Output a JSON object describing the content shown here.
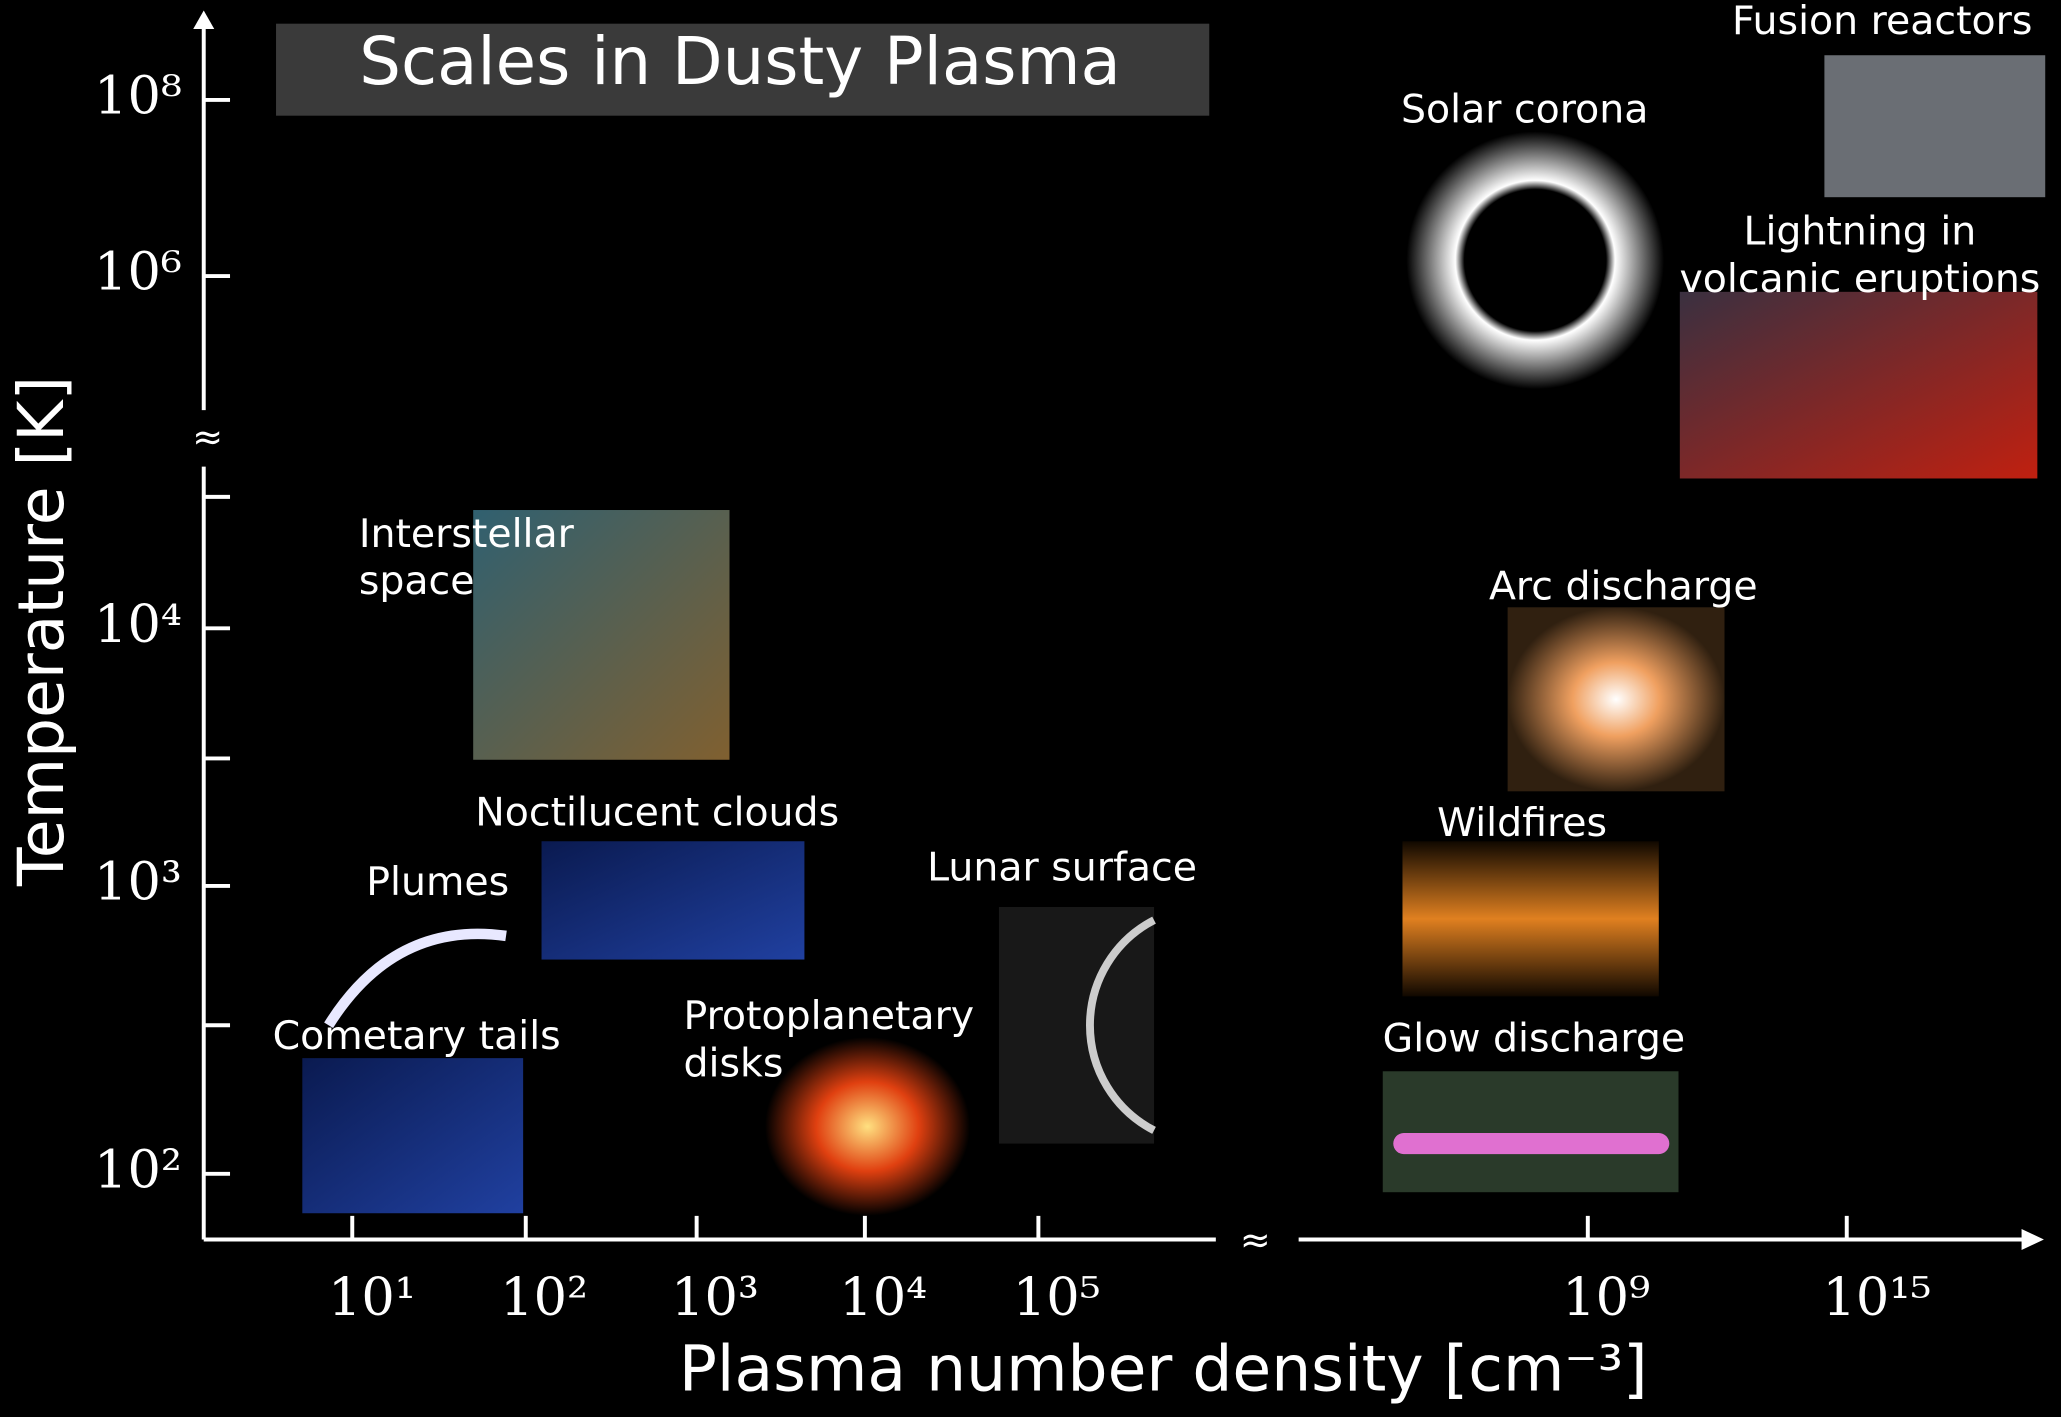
{
  "title": "Scales in Dusty Plasma",
  "y_axis": {
    "label": "Temperature [K]",
    "ticks": [
      "10⁸",
      "10⁶",
      "10⁴",
      "10³",
      "10²"
    ]
  },
  "x_axis": {
    "label": "Plasma number density [cm⁻³]",
    "ticks": [
      "10¹",
      "10²",
      "10³",
      "10⁴",
      "10⁵",
      "10⁹",
      "10¹⁵"
    ]
  },
  "axis_break": "≈",
  "items": [
    {
      "lines": [
        "Fusion reactors"
      ]
    },
    {
      "lines": [
        "Solar corona"
      ]
    },
    {
      "lines": [
        "Lightning in",
        "volcanic eruptions"
      ]
    },
    {
      "lines": [
        "Interstellar",
        "space"
      ]
    },
    {
      "lines": [
        "Arc discharge"
      ]
    },
    {
      "lines": [
        "Noctilucent clouds"
      ]
    },
    {
      "lines": [
        "Wildfires"
      ]
    },
    {
      "lines": [
        "Plumes"
      ]
    },
    {
      "lines": [
        "Lunar surface"
      ]
    },
    {
      "lines": [
        "Protoplanetary",
        "disks"
      ]
    },
    {
      "lines": [
        "Glow discharge"
      ]
    },
    {
      "lines": [
        "Cometary tails"
      ]
    }
  ]
}
